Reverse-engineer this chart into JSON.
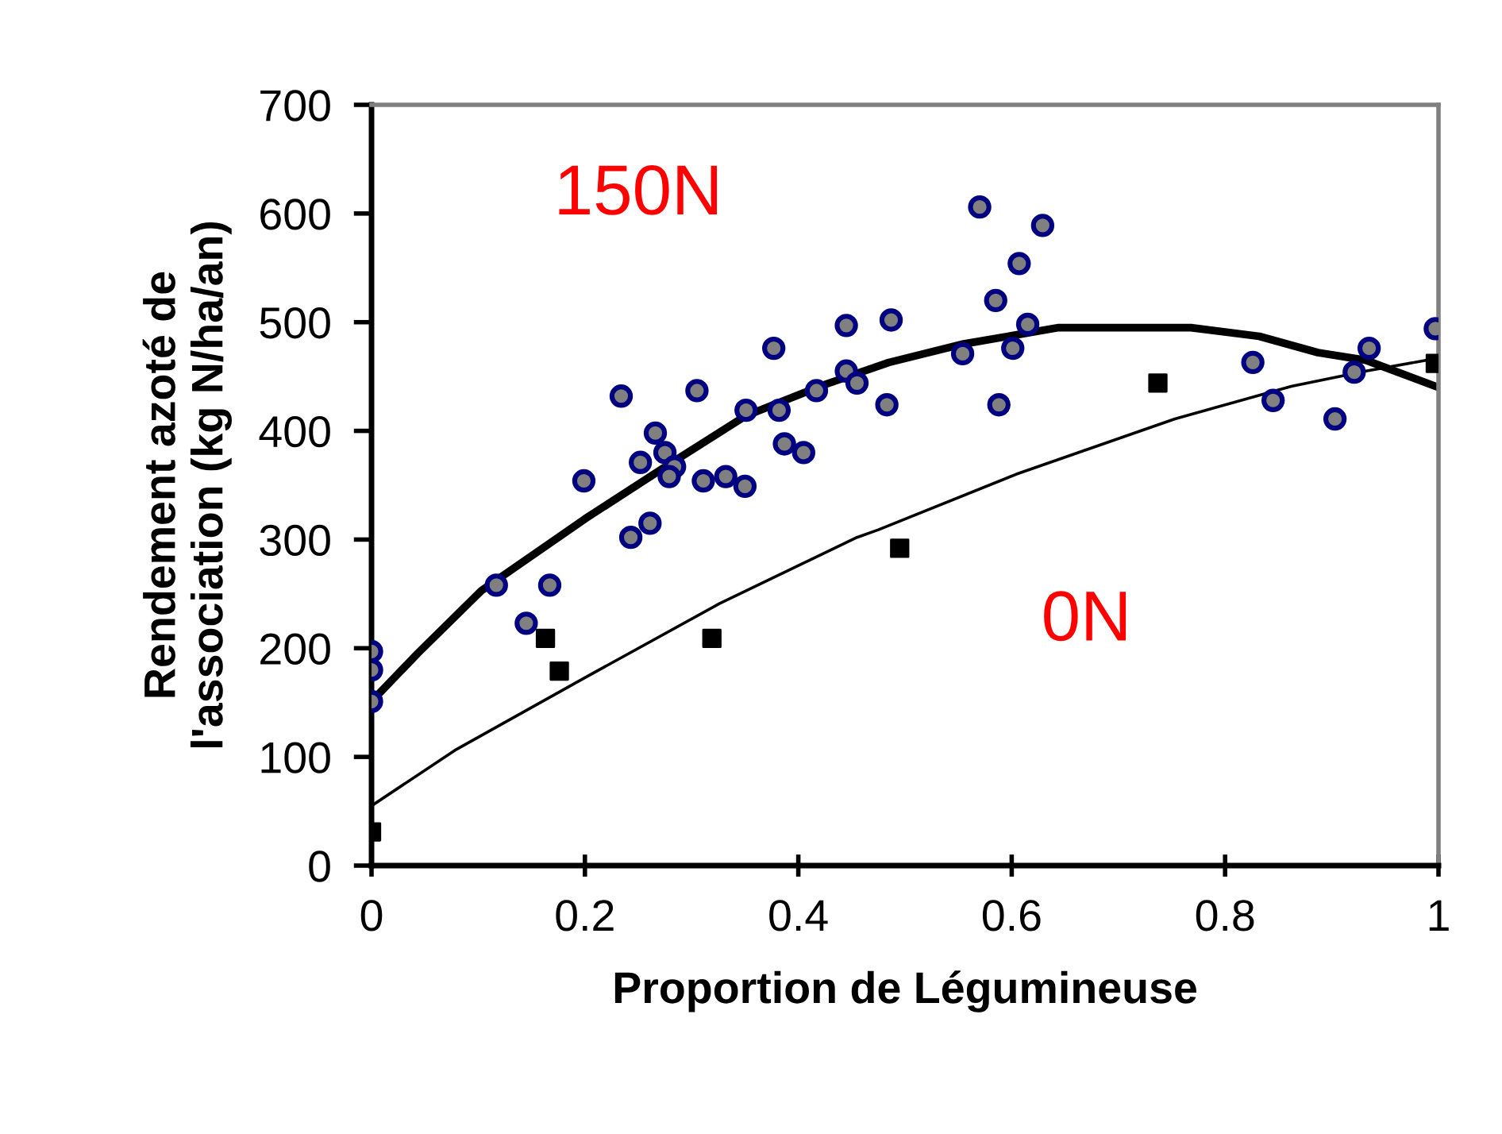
{
  "chart_data": {
    "type": "scatter",
    "xlabel": "Proportion de Légumineuse",
    "ylabel": "Rendement azoté de\nl'association (kg N/ha/an)",
    "xlim": [
      0,
      1
    ],
    "ylim": [
      0,
      700
    ],
    "xticks": [
      0,
      0.2,
      0.4,
      0.6,
      0.8,
      1
    ],
    "yticks": [
      0,
      100,
      200,
      300,
      400,
      500,
      600,
      700
    ],
    "grid": false,
    "legend": false,
    "annotations": [
      "150N",
      "0N"
    ],
    "series": [
      {
        "color": "#808080",
        "marker": "circle",
        "x": [
          0,
          0,
          0,
          0.117,
          0.145,
          0.167,
          0.199,
          0.234,
          0.243,
          0.261,
          0.252,
          0.266,
          0.275,
          0.284,
          0.279,
          0.305,
          0.311,
          0.332,
          0.35,
          0.351,
          0.377,
          0.382,
          0.387,
          0.405,
          0.417,
          0.445,
          0.445,
          0.455,
          0.487,
          0.483,
          0.554,
          0.57,
          0.585,
          0.588,
          0.601,
          0.607,
          0.615,
          0.629,
          0.826,
          0.845,
          0.903,
          0.921,
          0.935,
          0.997
        ],
        "values": [
          197,
          180,
          151,
          258,
          223,
          258,
          354,
          432,
          302,
          315,
          371,
          398,
          380,
          367,
          358,
          437,
          354,
          358,
          349,
          419,
          476,
          419,
          388,
          380,
          437,
          497,
          455,
          444,
          502,
          424,
          471,
          606,
          520,
          424,
          476,
          554,
          498,
          589,
          463,
          428,
          411,
          454,
          476,
          494
        ]
      },
      {
        "color": "#000000",
        "marker": "square",
        "x": [
          0,
          0.163,
          0.176,
          0.319,
          0.495,
          0.737,
          0.997
        ],
        "values": [
          31,
          209,
          179,
          209,
          292,
          444,
          462
        ]
      },
      {
        "type": "line",
        "color": "#000000",
        "marker": "none",
        "line_style": "solid",
        "x": [
          0,
          0.043,
          0.103,
          0.2,
          0.277,
          0.351,
          0.426,
          0.485,
          0.555,
          0.644,
          0.768,
          0.832,
          0.887,
          0.932,
          1
        ],
        "values": [
          151,
          195,
          253,
          319,
          368,
          414,
          443,
          463,
          480,
          495,
          495,
          487,
          472,
          465,
          440
        ]
      },
      {
        "type": "line",
        "color": "#000000",
        "marker": "none",
        "line_style": "solid",
        "x": [
          0,
          0.078,
          0.202,
          0.326,
          0.455,
          0.475,
          0.604,
          0.753,
          0.862,
          0.932,
          1
        ],
        "values": [
          55,
          106,
          174,
          241,
          302,
          309,
          360,
          411,
          441,
          455,
          467
        ]
      }
    ]
  }
}
